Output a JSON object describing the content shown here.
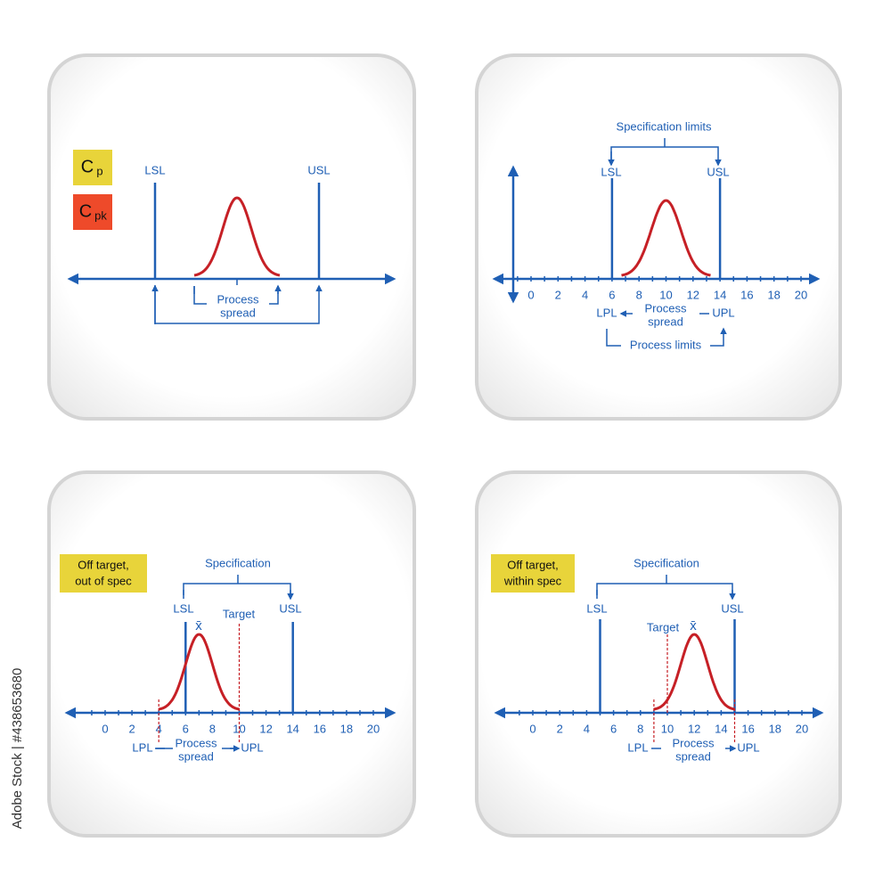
{
  "watermark": "Adobe Stock | #438653680",
  "panels": [
    {
      "badges": [
        {
          "main": "C",
          "sub": "p"
        },
        {
          "main": "C",
          "sub": "pk"
        }
      ],
      "lsl": "LSL",
      "usl": "USL",
      "spread": [
        "Process",
        "spread"
      ]
    },
    {
      "title": "Specification limits",
      "lsl": "LSL",
      "usl": "USL",
      "ticks": [
        0,
        2,
        4,
        6,
        8,
        10,
        12,
        14,
        16,
        18,
        20
      ],
      "lpl": "LPL",
      "upl": "UPL",
      "spread": [
        "Process",
        "spread"
      ],
      "limits": "Process limits"
    },
    {
      "badge": [
        "Off target,",
        "out of spec"
      ],
      "title": "Specification",
      "lsl": "LSL",
      "usl": "USL",
      "mean": "x̄",
      "target": "Target",
      "ticks": [
        0,
        2,
        4,
        6,
        8,
        10,
        12,
        14,
        16,
        18,
        20
      ],
      "lpl": "LPL",
      "upl": "UPL",
      "spread": [
        "Process",
        "spread"
      ]
    },
    {
      "badge": [
        "Off target,",
        "within spec"
      ],
      "title": "Specification",
      "lsl": "LSL",
      "usl": "USL",
      "mean": "x̄",
      "target": "Target",
      "ticks": [
        0,
        2,
        4,
        6,
        8,
        10,
        12,
        14,
        16,
        18,
        20
      ],
      "lpl": "LPL",
      "upl": "UPL",
      "spread": [
        "Process",
        "spread"
      ]
    }
  ]
}
